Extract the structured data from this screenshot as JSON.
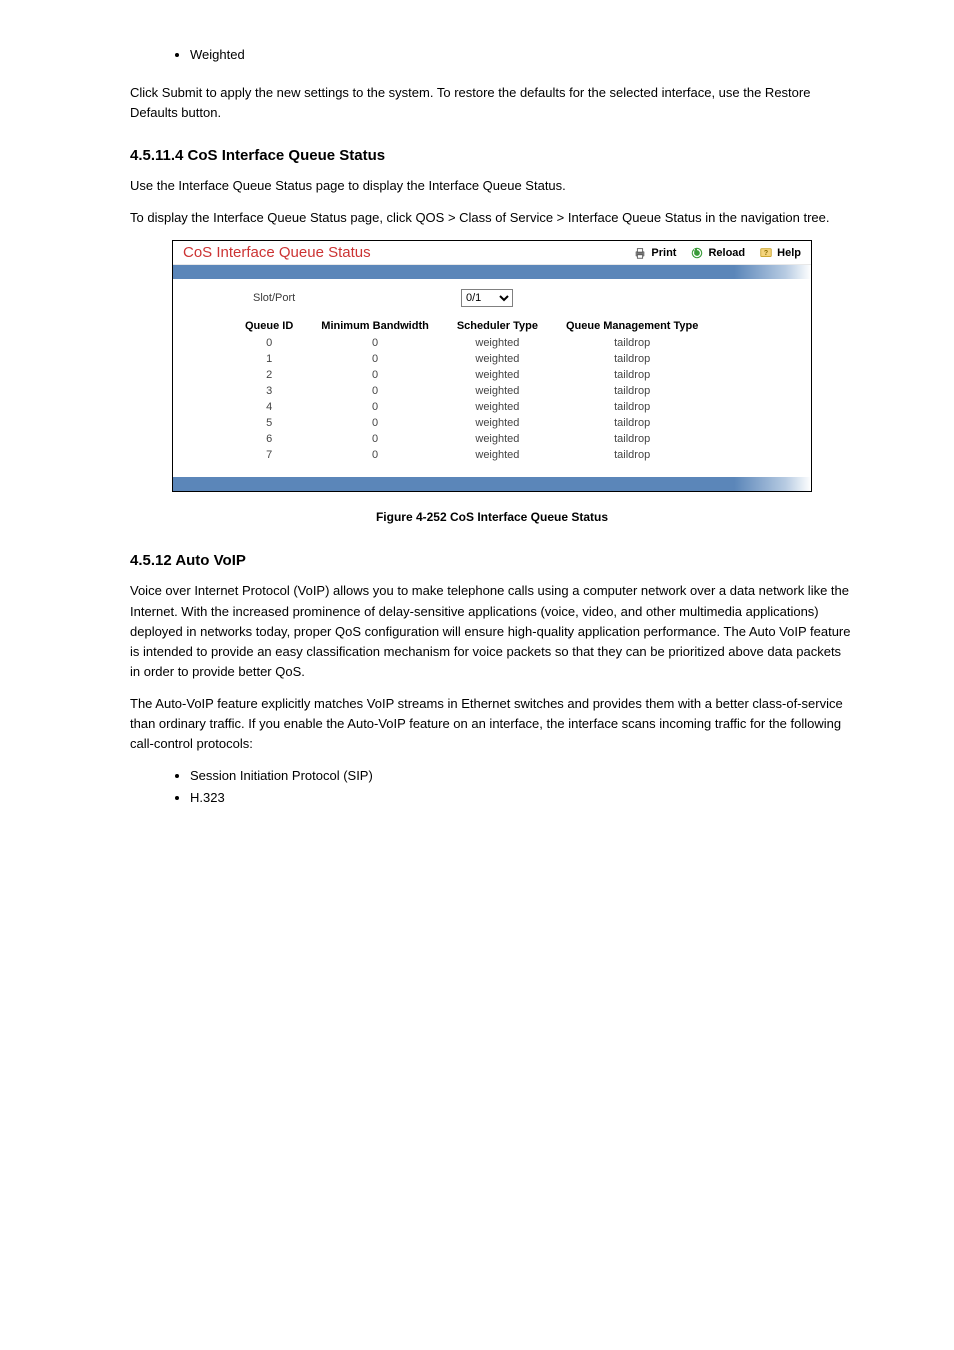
{
  "pre_bullet": "Weighted",
  "para1": "Click Submit to apply the new settings to the system. To restore the defaults for the selected interface, use the Restore Defaults button.",
  "sec1": {
    "title": "4.5.11.4 CoS Interface Queue Status",
    "p1": "Use the Interface Queue Status page to display the Interface Queue Status.",
    "p2": "To display the Interface Queue Status page, click QOS > Class of Service > Interface Queue Status in the navigation tree."
  },
  "panel": {
    "title": "CoS Interface Queue Status",
    "actions": {
      "print": "Print",
      "reload": "Reload",
      "help": "Help"
    },
    "slotport_label": "Slot/Port",
    "slotport_value": "0/1",
    "columns": [
      "Queue ID",
      "Minimum Bandwidth",
      "Scheduler Type",
      "Queue Management Type"
    ],
    "rows": [
      [
        "0",
        "0",
        "weighted",
        "taildrop"
      ],
      [
        "1",
        "0",
        "weighted",
        "taildrop"
      ],
      [
        "2",
        "0",
        "weighted",
        "taildrop"
      ],
      [
        "3",
        "0",
        "weighted",
        "taildrop"
      ],
      [
        "4",
        "0",
        "weighted",
        "taildrop"
      ],
      [
        "5",
        "0",
        "weighted",
        "taildrop"
      ],
      [
        "6",
        "0",
        "weighted",
        "taildrop"
      ],
      [
        "7",
        "0",
        "weighted",
        "taildrop"
      ]
    ]
  },
  "figcap": "Figure 4-252 CoS Interface Queue Status",
  "sec2": {
    "title": "4.5.12 Auto VoIP",
    "p1": "Voice over Internet Protocol (VoIP) allows you to make telephone calls using a computer network over a data network like the Internet. With the increased prominence of delay-sensitive applications (voice, video, and other multimedia applications) deployed in networks today, proper QoS configuration will ensure high-quality application performance. The Auto VoIP feature is intended to provide an easy classification mechanism for voice packets so that they can be prioritized above data packets in order to provide better QoS.",
    "p2": "The Auto-VoIP feature explicitly matches VoIP streams in Ethernet switches and provides them with a better class-of-service than ordinary traffic. If you enable the Auto-VoIP feature on an interface, the interface scans incoming traffic for the following call-control protocols:",
    "bullets": [
      "Session Initiation Protocol (SIP)",
      "H.323"
    ]
  },
  "colors": {
    "title_red": "#cc3333",
    "bar_blue": "#5b86b9",
    "bar_light": "#b7cbe2"
  }
}
